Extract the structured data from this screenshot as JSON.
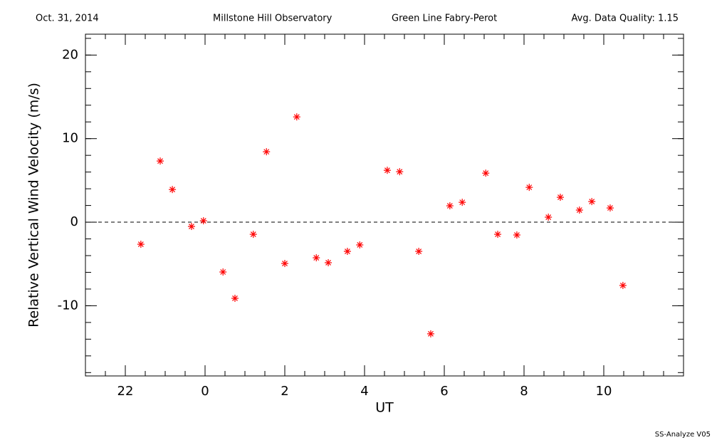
{
  "chart_data": {
    "type": "scatter",
    "header": [
      "Oct. 31, 2014",
      "Millstone Hill Observatory",
      "Green Line Fabry-Perot",
      "Avg. Data Quality: 1.15"
    ],
    "footer": "SS-Analyze V05",
    "xlabel": "UT",
    "ylabel": "Relative Vertical Wind Velocity (m/s)",
    "xlim": [
      -3,
      12
    ],
    "ylim": [
      -18.4,
      22.5
    ],
    "xticks": [
      {
        "value": -2,
        "label": "22"
      },
      0,
      2,
      4,
      6,
      8,
      10
    ],
    "yticks": [
      -10,
      0,
      10,
      20
    ],
    "reference_line": 0,
    "color": "#ff0000",
    "x": [
      -1.61,
      -1.125,
      -0.82,
      -0.34,
      -0.04,
      0.45,
      0.75,
      1.21,
      1.54,
      2.0,
      2.3,
      2.79,
      3.09,
      3.57,
      3.88,
      4.57,
      4.88,
      5.36,
      5.66,
      6.14,
      6.45,
      7.04,
      7.34,
      7.82,
      8.13,
      8.61,
      8.91,
      9.39,
      9.7,
      10.16,
      10.48
    ],
    "values": [
      -2.64,
      7.32,
      3.91,
      -0.51,
      0.17,
      -5.96,
      -9.11,
      -1.45,
      8.43,
      -4.94,
      12.6,
      -4.26,
      -4.85,
      -3.49,
      -2.72,
      6.21,
      6.04,
      -3.49,
      -13.36,
      1.96,
      2.38,
      5.87,
      -1.45,
      -1.53,
      4.17,
      0.6,
      2.98,
      1.45,
      2.47,
      1.7,
      -7.57
    ]
  }
}
